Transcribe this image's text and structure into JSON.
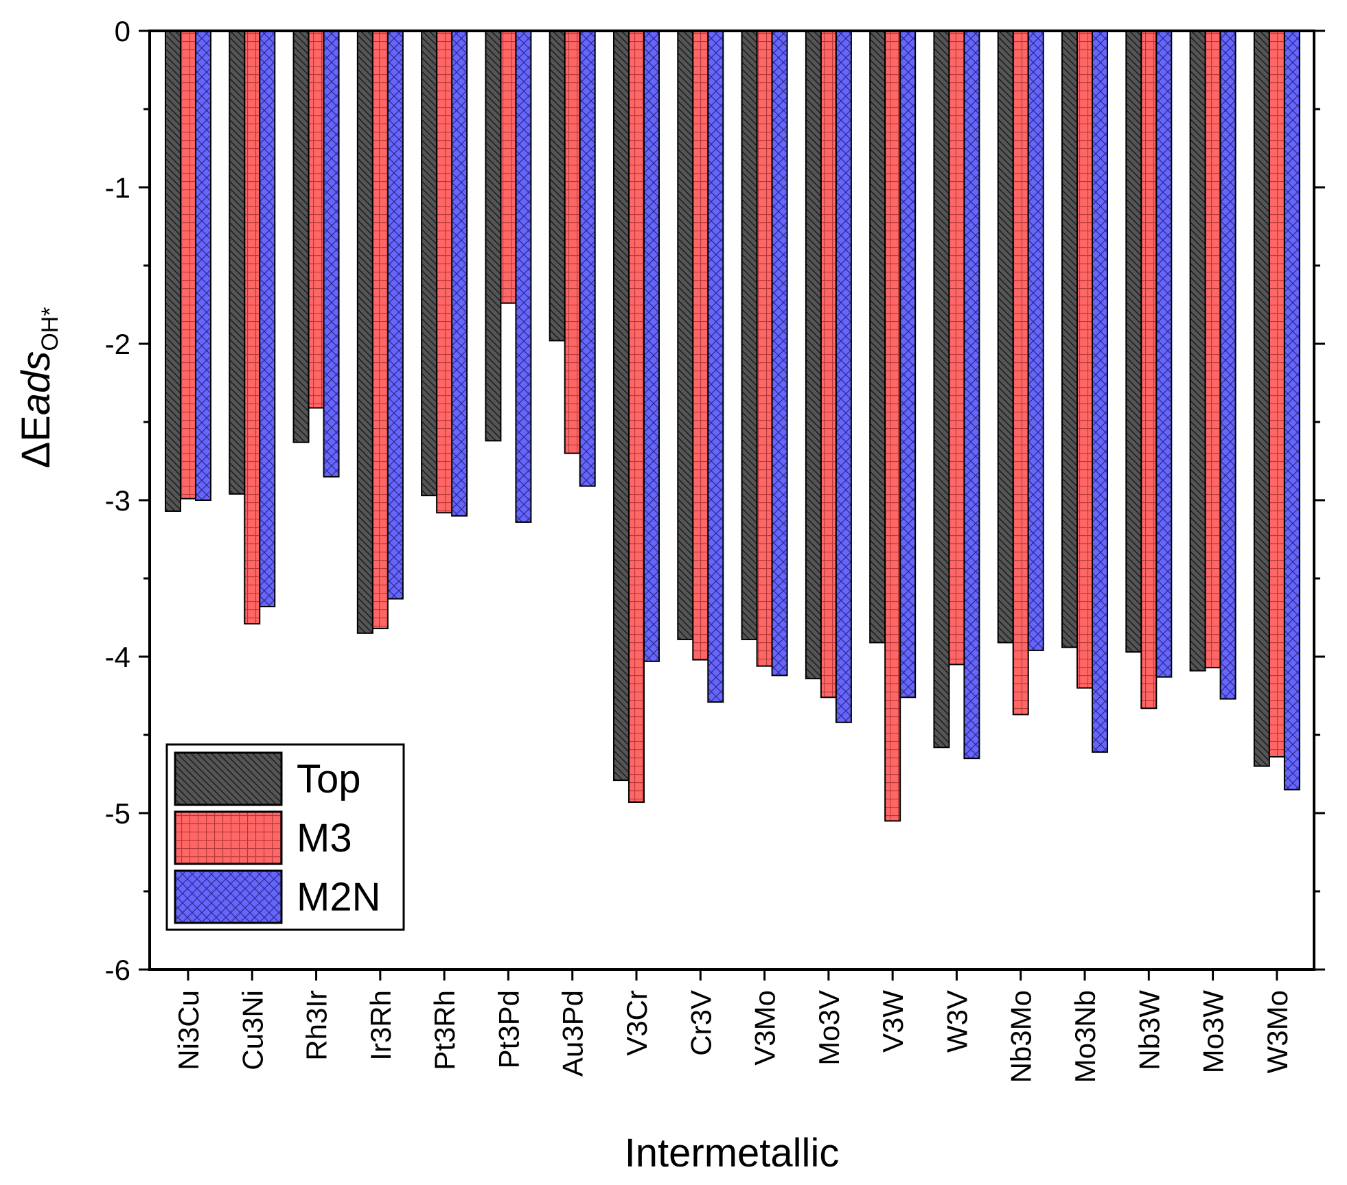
{
  "chart_data": {
    "type": "bar",
    "title": "",
    "xlabel": "Intermetallic",
    "ylabel": {
      "delta": "Δ",
      "main_upright": "E",
      "main_italic": "ads",
      "subscript": "OH*"
    },
    "ylim": [
      -6,
      0
    ],
    "yticks": [
      0,
      -1,
      -2,
      -3,
      -4,
      -5,
      -6
    ],
    "ytick_labels": [
      "0",
      "-1",
      "-2",
      "-3",
      "-4",
      "-5",
      "-6"
    ],
    "legend_position": "bottom-left",
    "categories": [
      "Ni3Cu",
      "Cu3Ni",
      "Rh3Ir",
      "Ir3Rh",
      "Pt3Rh",
      "Pt3Pd",
      "Au3Pd",
      "V3Cr",
      "Cr3V",
      "V3Mo",
      "Mo3V",
      "V3W",
      "W3V",
      "Nb3Mo",
      "Mo3Nb",
      "Nb3W",
      "Mo3W",
      "W3Mo"
    ],
    "series": [
      {
        "name": "Top",
        "color": "#555555",
        "pattern": "diagonal-hatch",
        "values": [
          -3.07,
          -2.96,
          -2.63,
          -3.85,
          -2.97,
          -2.62,
          -1.98,
          -4.79,
          -3.89,
          -3.89,
          -4.14,
          -3.91,
          -4.58,
          -3.91,
          -3.94,
          -3.97,
          -4.09,
          -4.7
        ]
      },
      {
        "name": "M3",
        "color": "#ff6666",
        "pattern": "grid",
        "values": [
          -2.99,
          -3.79,
          -2.41,
          -3.82,
          -3.08,
          -1.74,
          -2.7,
          -4.93,
          -4.02,
          -4.06,
          -4.26,
          -5.05,
          -4.05,
          -4.37,
          -4.2,
          -4.33,
          -4.07,
          -4.64
        ]
      },
      {
        "name": "M2N",
        "color": "#6666ff",
        "pattern": "crosshatch",
        "values": [
          -3.0,
          -3.68,
          -2.85,
          -3.63,
          -3.1,
          -3.14,
          -2.91,
          -4.03,
          -4.29,
          -4.12,
          -4.42,
          -4.26,
          -4.65,
          -3.96,
          -4.61,
          -4.13,
          -4.27,
          -4.85
        ]
      }
    ]
  }
}
